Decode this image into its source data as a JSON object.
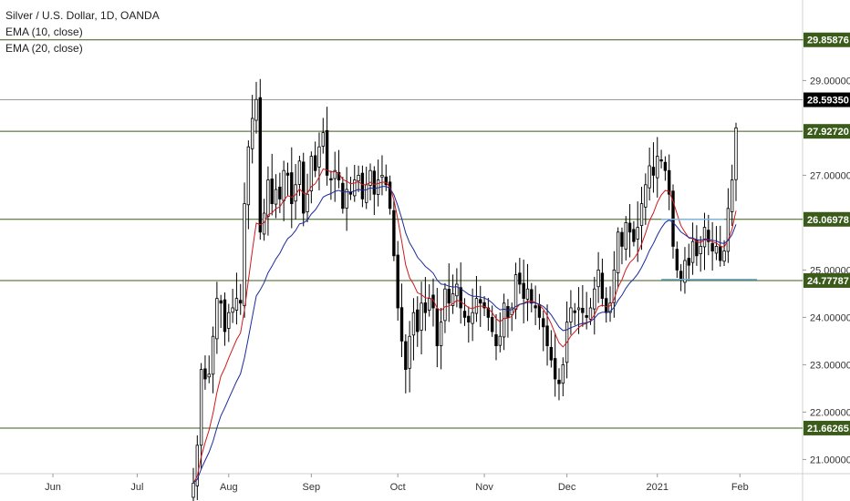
{
  "header": {
    "title": "Silver / U.S. Dollar, 1D, OANDA",
    "indicators": [
      "EMA (10, close)",
      "EMA (20, close)"
    ]
  },
  "colors": {
    "up_candle": "#ffffff",
    "down_candle": "#000000",
    "candle_outline": "#000000",
    "ema10": "#d0191c",
    "ema20": "#1c2a9c",
    "level_line": "#3b5b1b",
    "level_label_bg": "#3b5b1b",
    "current_label_bg": "#000000",
    "current_line": "#9a9a9a",
    "box": "#7fb4d9"
  },
  "chart_data": {
    "type": "candlestick",
    "title": "Silver / U.S. Dollar, 1D, OANDA",
    "x_ticks": [
      "Jun",
      "Jul",
      "Aug",
      "Sep",
      "Oct",
      "Nov",
      "Dec",
      "2021",
      "Feb"
    ],
    "y_ticks": [
      "21.00000",
      "22.00000",
      "23.00000",
      "24.00000",
      "25.00000",
      "27.00000",
      "29.00000",
      "29.85876"
    ],
    "ylim": [
      20.7,
      30.7
    ],
    "levels": [
      {
        "value": 29.85876,
        "label": "29.85876"
      },
      {
        "value": 27.9272,
        "label": "27.92720"
      },
      {
        "value": 26.06978,
        "label": "26.06978"
      },
      {
        "value": 24.77787,
        "label": "24.77787"
      },
      {
        "value": 21.66265,
        "label": "21.66265"
      }
    ],
    "current_price": {
      "value": 28.5935,
      "label": "28.59350"
    },
    "series": [
      {
        "name": "EMA (10, close)",
        "kind": "ema",
        "period": 10
      },
      {
        "name": "EMA (20, close)",
        "kind": "ema",
        "period": 20
      }
    ],
    "closes_note": "daily closes, 2020-07-21 to 2021-02-01",
    "closes": [
      20.5,
      21.3,
      22.9,
      22.7,
      22.8,
      23.6,
      24.4,
      24.3,
      23.7,
      24.1,
      24.2,
      24.4,
      24.3,
      26.4,
      27.6,
      28.2,
      28.6,
      25.8,
      26.2,
      26.9,
      26.4,
      26.7,
      26.5,
      27.1,
      27.0,
      26.4,
      26.8,
      27.3,
      26.2,
      26.6,
      27.4,
      27.1,
      27.6,
      27.9,
      27.0,
      26.9,
      27.1,
      26.9,
      26.3,
      26.7,
      26.6,
      26.9,
      27.0,
      26.5,
      26.8,
      27.1,
      26.6,
      26.9,
      27.0,
      26.8,
      26.3,
      25.3,
      24.2,
      23.5,
      22.9,
      23.6,
      24.1,
      23.7,
      24.3,
      24.1,
      24.4,
      24.2,
      23.4,
      23.9,
      24.6,
      24.3,
      24.5,
      24.7,
      24.2,
      24.0,
      23.9,
      24.1,
      24.4,
      24.3,
      24.2,
      24.0,
      23.7,
      23.4,
      23.6,
      24.3,
      24.0,
      24.2,
      24.9,
      24.7,
      24.4,
      24.6,
      24.3,
      24.2,
      24.0,
      23.8,
      23.4,
      23.1,
      22.7,
      22.6,
      23.0,
      23.9,
      24.2,
      24.1,
      24.2,
      24.1,
      24.0,
      24.2,
      24.6,
      25.0,
      24.4,
      24.1,
      24.3,
      25.0,
      25.8,
      25.5,
      26.0,
      25.8,
      25.6,
      25.9,
      26.4,
      26.8,
      27.2,
      27.0,
      27.4,
      27.3,
      27.1,
      26.6,
      25.5,
      25.0,
      24.8,
      25.2,
      25.1,
      25.6,
      25.3,
      25.5,
      25.9,
      25.6,
      25.4,
      25.5,
      25.2,
      25.4,
      26.3,
      26.9,
      28.0
    ]
  }
}
